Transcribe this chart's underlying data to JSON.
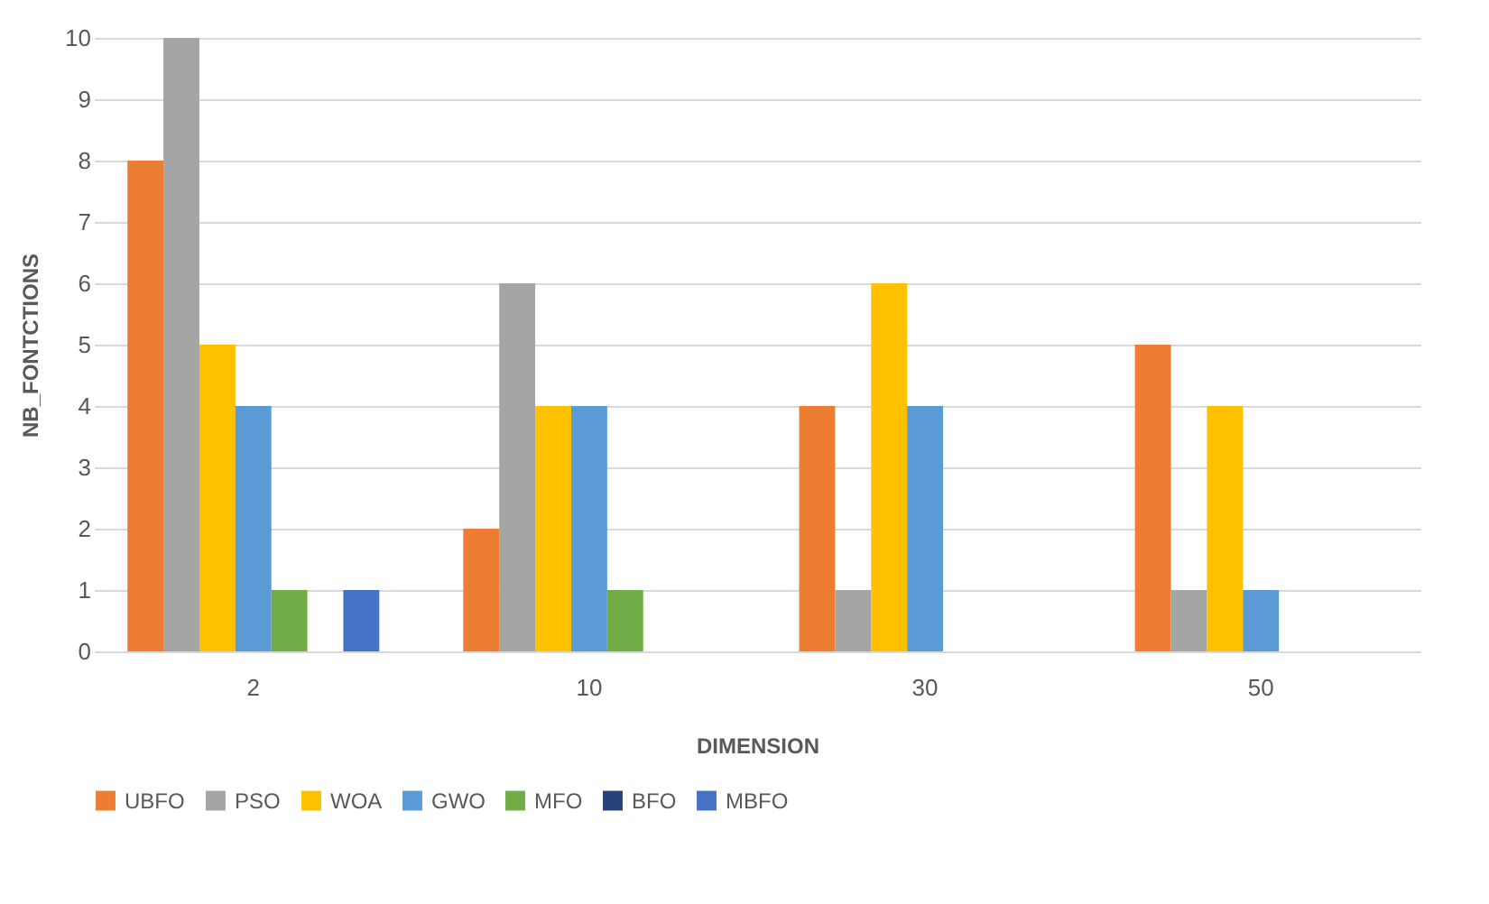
{
  "chart_data": {
    "type": "bar",
    "xlabel": "DIMENSION",
    "ylabel": "NB_FONTCTIONS",
    "categories": [
      "2",
      "10",
      "30",
      "50"
    ],
    "series": [
      {
        "name": "UBFO",
        "color": "#ed7d31",
        "values": [
          8,
          2,
          4,
          5
        ]
      },
      {
        "name": "PSO",
        "color": "#a5a5a5",
        "values": [
          10,
          6,
          1,
          1
        ]
      },
      {
        "name": "WOA",
        "color": "#ffc000",
        "values": [
          5,
          4,
          6,
          4
        ]
      },
      {
        "name": "GWO",
        "color": "#5b9bd5",
        "values": [
          4,
          4,
          4,
          1
        ]
      },
      {
        "name": "MFO",
        "color": "#70ad47",
        "values": [
          1,
          1,
          0,
          0
        ]
      },
      {
        "name": "BFO",
        "color": "#264478",
        "values": [
          0,
          0,
          0,
          0
        ]
      },
      {
        "name": "MBFO",
        "color": "#4472c4",
        "values": [
          1,
          0,
          0,
          0
        ]
      }
    ],
    "ylim": [
      0,
      10
    ],
    "yticks": [
      0,
      1,
      2,
      3,
      4,
      5,
      6,
      7,
      8,
      9,
      10
    ],
    "grid": "y",
    "legend": "bottom"
  }
}
